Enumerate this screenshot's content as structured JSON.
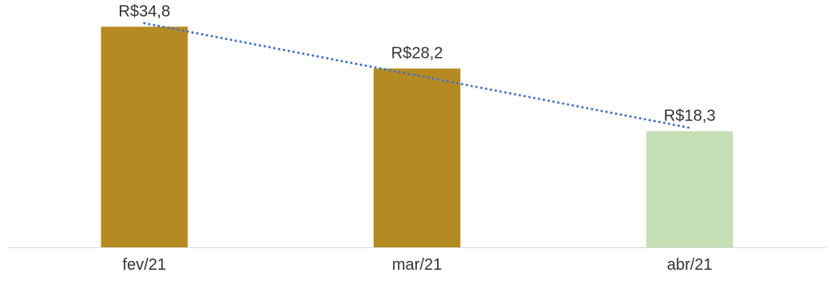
{
  "chart_data": {
    "type": "bar",
    "title": "",
    "xlabel": "",
    "ylabel": "",
    "categories": [
      "fev/21",
      "mar/21",
      "abr/21"
    ],
    "values": [
      34.8,
      28.2,
      18.3
    ],
    "data_labels": [
      "R$34,8",
      "R$28,2",
      "R$18,3"
    ],
    "bar_colors": [
      "#B58A22",
      "#B58A22",
      "#C5E0B4"
    ],
    "ylim": [
      0,
      38
    ],
    "grid": false,
    "legend": "none",
    "trendline": {
      "type": "linear",
      "style": "dotted",
      "color": "#4472C4"
    },
    "axis_color": "#D9D9D9"
  }
}
